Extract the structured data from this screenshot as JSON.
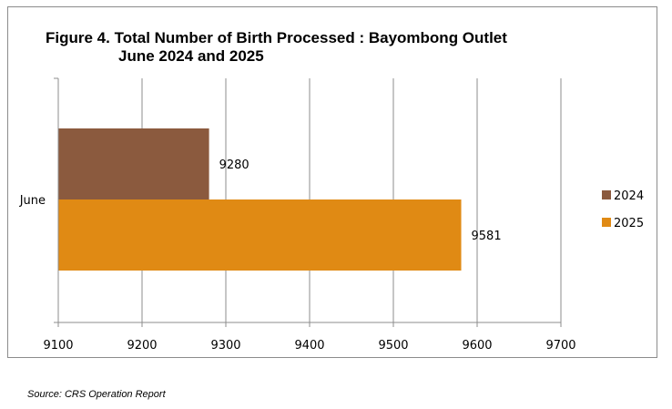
{
  "chart_data": {
    "type": "bar",
    "orientation": "horizontal",
    "title_line1": "Figure 4. Total Number of Birth Processed : Bayombong Outlet",
    "title_line2": "June 2024 and 2025",
    "categories": [
      "June"
    ],
    "series": [
      {
        "name": "2024",
        "values": [
          9280
        ],
        "color": "#8B5A3E"
      },
      {
        "name": "2025",
        "values": [
          9581
        ],
        "color": "#E08A14"
      }
    ],
    "xlim": [
      9100,
      9700
    ],
    "xticks": [
      9100,
      9200,
      9300,
      9400,
      9500,
      9600,
      9700
    ],
    "grid": true,
    "legend_position": "right",
    "xlabel": "",
    "ylabel": ""
  },
  "source_text": "Source: CRS Operation Report"
}
